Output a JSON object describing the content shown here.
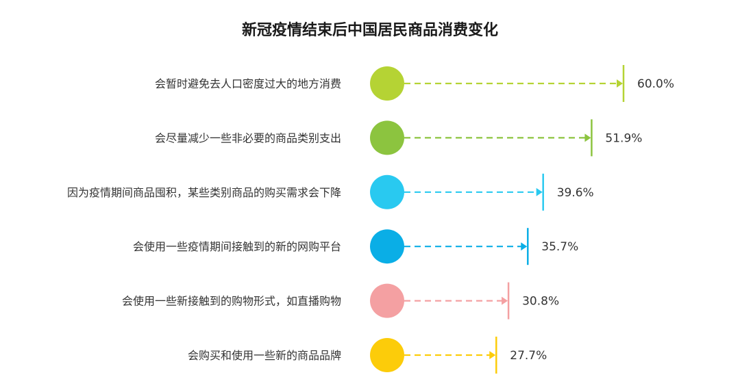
{
  "chart_data": {
    "type": "bar",
    "title": "新冠疫情结束后中国居民商品消费变化",
    "xlabel": "",
    "ylabel": "",
    "unit": "%",
    "categories": [
      "会暂时避免去人口密度过大的地方消费",
      "会尽量减少一些非必要的商品类别支出",
      "因为疫情期间商品囤积，某些类别商品的购买需求会下降",
      "会使用一些疫情期间接触到的新的网购平台",
      "会使用一些新接触到的购物形式，如直播购物",
      "会购买和使用一些新的商品品牌"
    ],
    "values": [
      60.0,
      51.9,
      39.6,
      35.7,
      30.8,
      27.7
    ],
    "value_labels": [
      "60.0%",
      "51.9%",
      "39.6%",
      "35.7%",
      "30.8%",
      "27.7%"
    ],
    "colors": [
      "#b5d334",
      "#8cc43f",
      "#29c9f0",
      "#0aaee6",
      "#f4a0a2",
      "#fccc0a"
    ],
    "grid": false,
    "legend": "none"
  }
}
